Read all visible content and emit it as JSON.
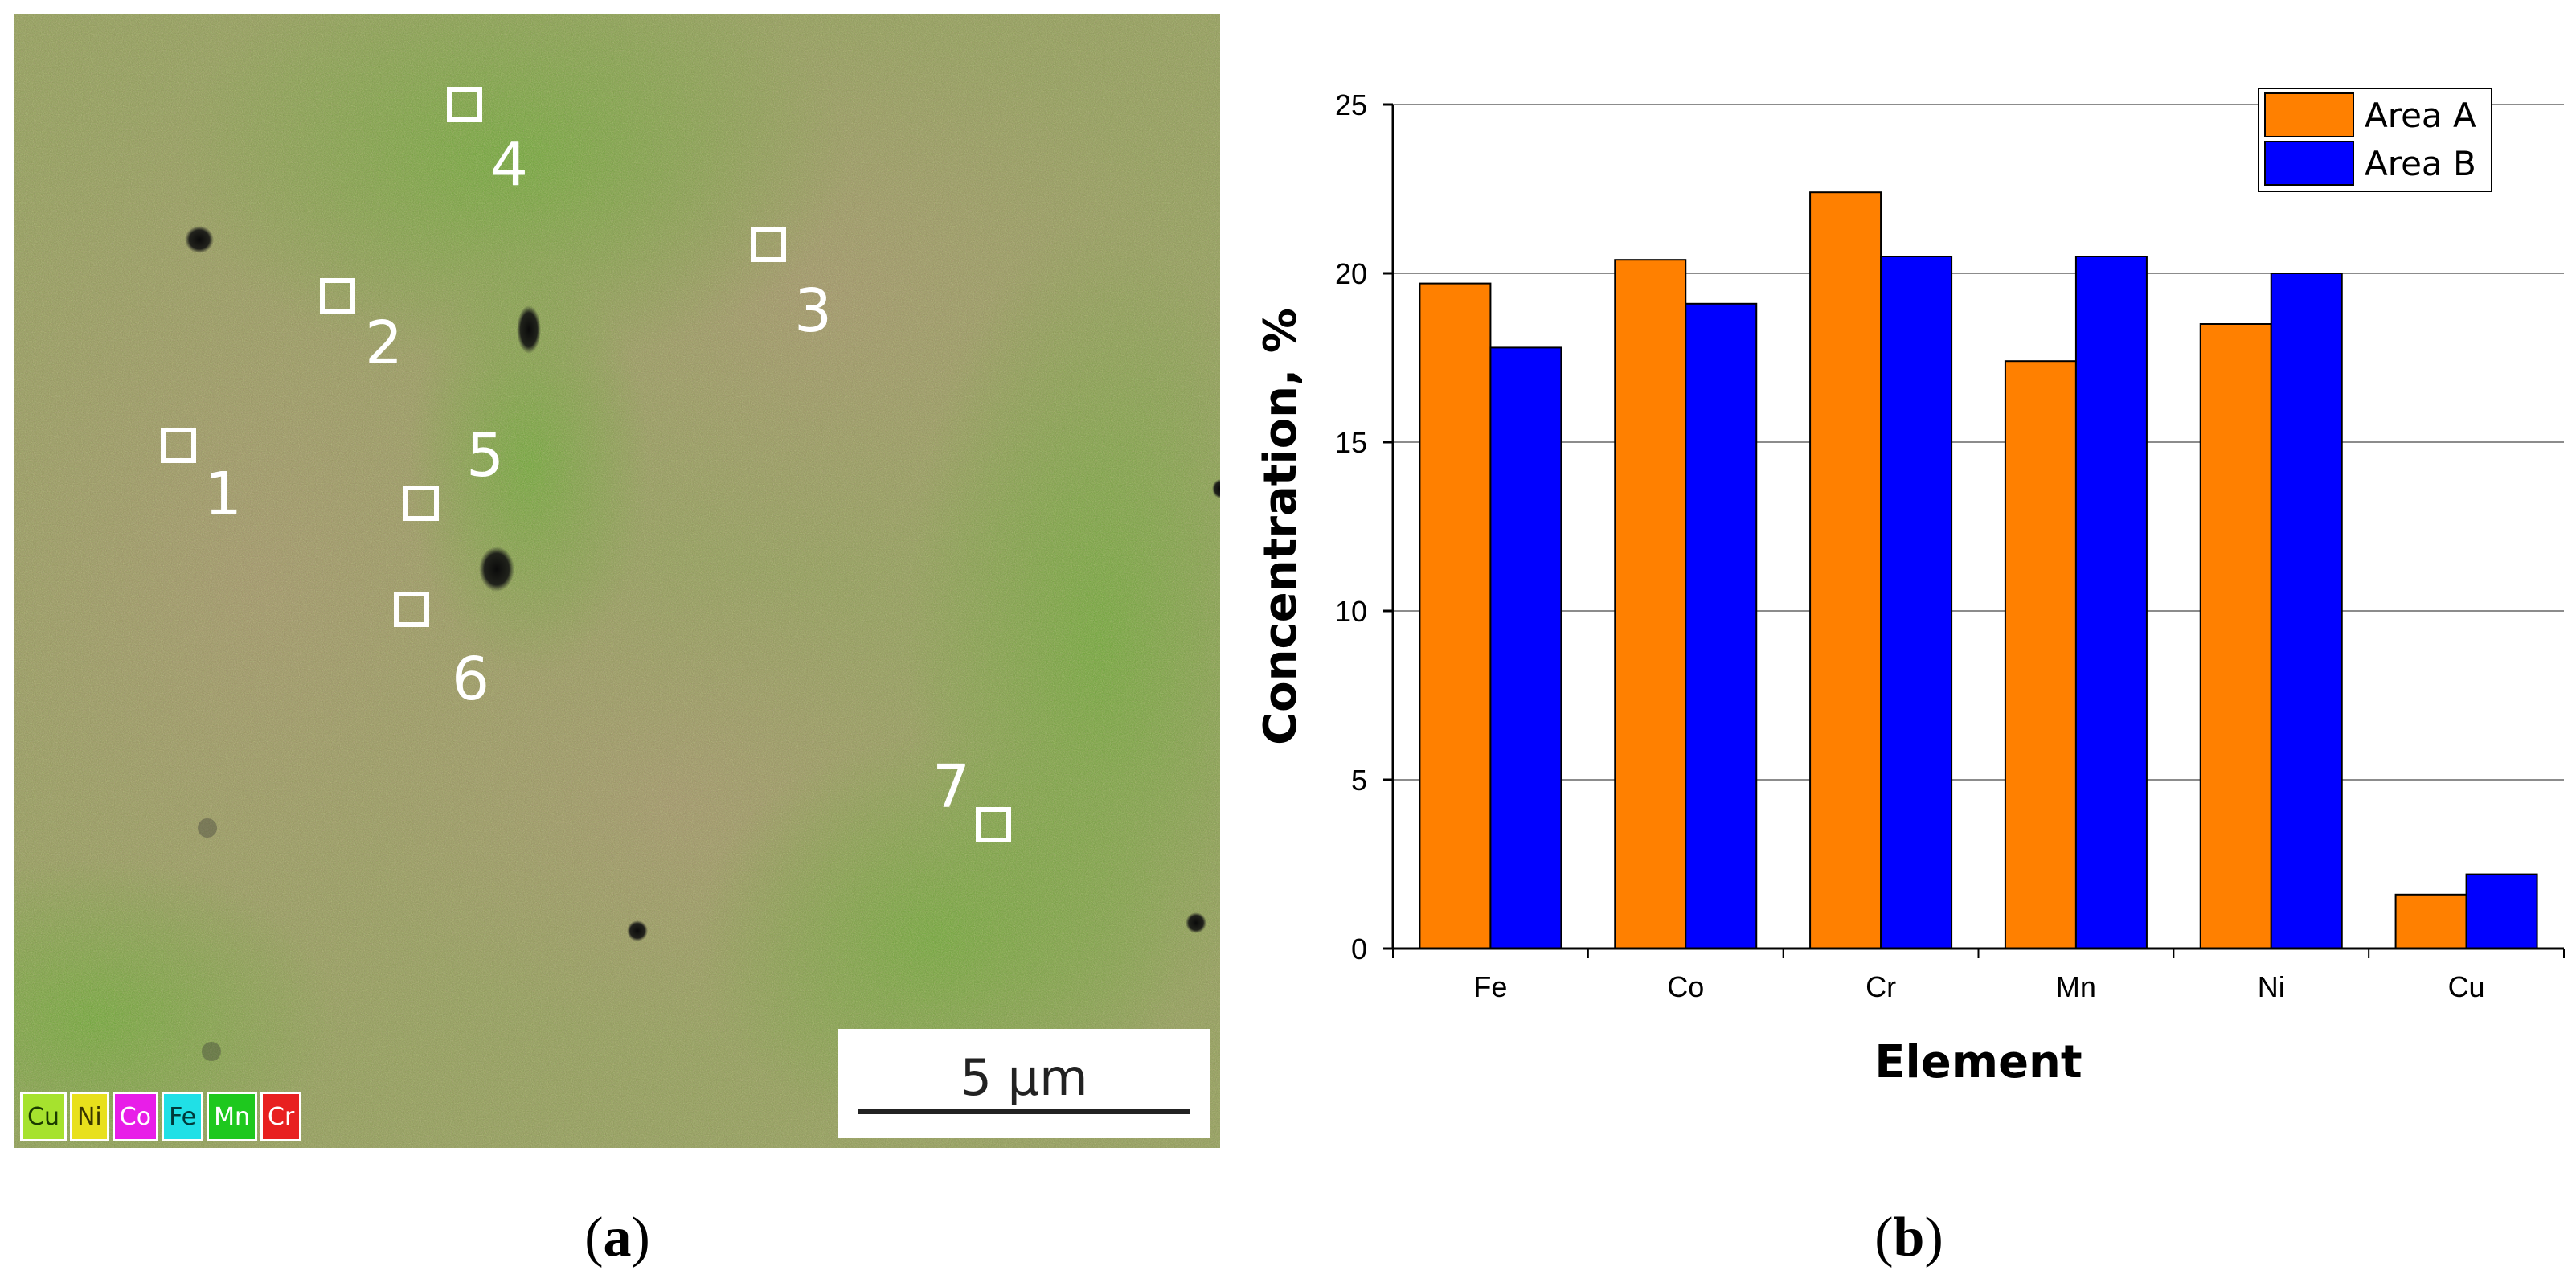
{
  "panel_a": {
    "caption_letter": "a",
    "scale_bar_label": "5 µm",
    "area_markers": [
      "1",
      "2",
      "3",
      "4",
      "5",
      "6",
      "7"
    ],
    "element_legend": [
      {
        "symbol": "Cu",
        "color": "#a6e22e",
        "text_color": "#1a3a00"
      },
      {
        "symbol": "Ni",
        "color": "#e8e01c",
        "text_color": "#3a3600"
      },
      {
        "symbol": "Co",
        "color": "#e81ee8",
        "text_color": "#ffffff"
      },
      {
        "symbol": "Fe",
        "color": "#20e0e6",
        "text_color": "#003a3a"
      },
      {
        "symbol": "Mn",
        "color": "#1ec81e",
        "text_color": "#ffffff"
      },
      {
        "symbol": "Cr",
        "color": "#e82020",
        "text_color": "#ffffff"
      }
    ]
  },
  "panel_b": {
    "caption_letter": "b"
  },
  "chart_data": {
    "type": "bar",
    "title": "",
    "xlabel": "Element",
    "ylabel": "Concentration, %",
    "categories": [
      "Fe",
      "Co",
      "Cr",
      "Mn",
      "Ni",
      "Cu"
    ],
    "series": [
      {
        "name": "Area A",
        "color": "#ff8000",
        "values": [
          19.7,
          20.4,
          22.4,
          17.4,
          18.5,
          1.6
        ]
      },
      {
        "name": "Area B",
        "color": "#0000ff",
        "values": [
          17.8,
          19.1,
          20.5,
          20.5,
          20.0,
          2.2
        ]
      }
    ],
    "ylim": [
      0,
      25
    ],
    "yticks": [
      0,
      5,
      10,
      15,
      20,
      25
    ],
    "grid": true,
    "legend": "top-right"
  }
}
